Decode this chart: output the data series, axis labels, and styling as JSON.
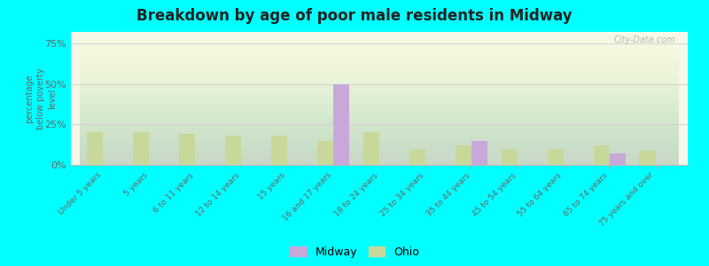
{
  "title": "Breakdown by age of poor male residents in Midway",
  "ylabel": "percentage\nbelow poverty\nlevel",
  "background_color": "#00ffff",
  "categories": [
    "Under 5 years",
    "5 years",
    "6 to 11 years",
    "12 to 14 years",
    "15 years",
    "16 and 17 years",
    "18 to 24 years",
    "25 to 34 years",
    "35 to 44 years",
    "45 to 54 years",
    "55 to 64 years",
    "65 to 74 years",
    "75 years and over"
  ],
  "midway_values": [
    0,
    0,
    0,
    0,
    0,
    50,
    0,
    0,
    15,
    0,
    0,
    7,
    0
  ],
  "ohio_values": [
    20,
    20,
    19,
    18,
    18,
    15,
    20,
    10,
    12,
    10,
    10,
    12,
    9
  ],
  "midway_color": "#c8a8d8",
  "ohio_color": "#c8d89a",
  "yticks": [
    0,
    25,
    50,
    75
  ],
  "ytick_labels": [
    "0%",
    "25%",
    "50%",
    "75%"
  ],
  "ylim": [
    0,
    82
  ],
  "bar_width": 0.35,
  "watermark": "City-Data.com",
  "plot_bg_top": "#f5f8e8",
  "plot_bg_bottom": "#e0eecc"
}
